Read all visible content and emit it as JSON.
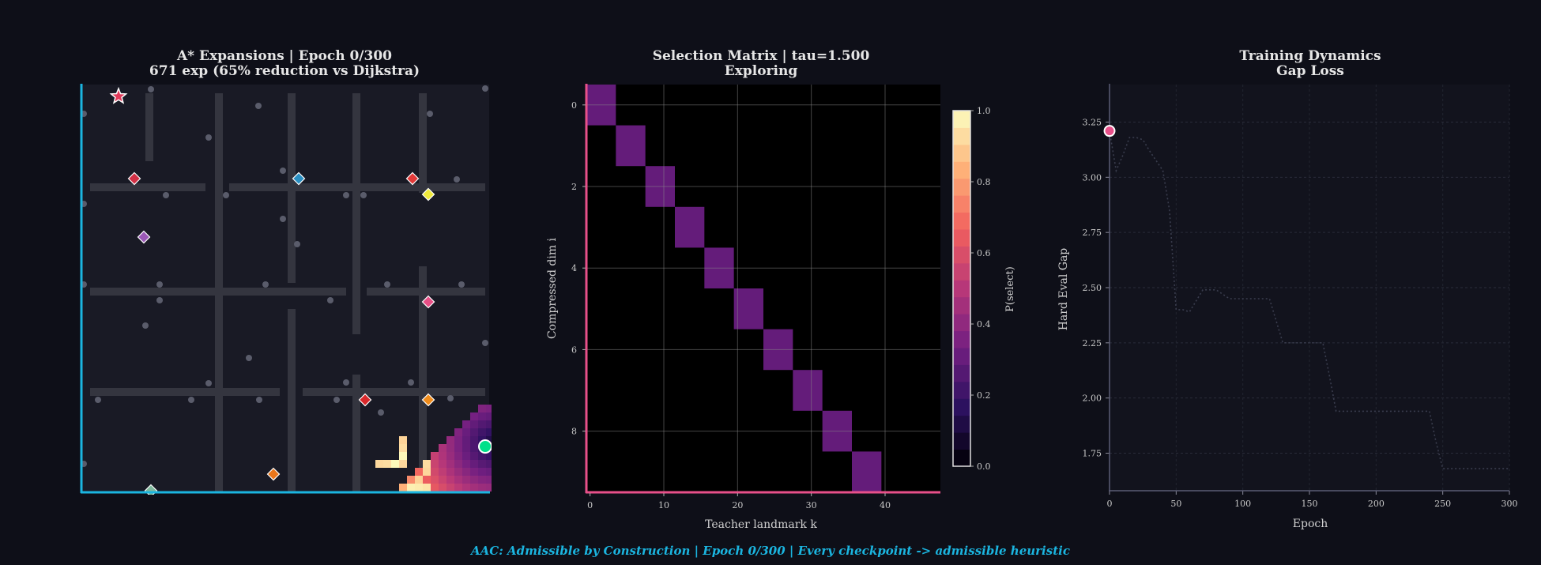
{
  "caption": "AAC: Admissible by Construction  |  Epoch 0/300  |  Every checkpoint -> admissible heuristic",
  "chart_data": [
    {
      "type": "heatmap",
      "title_line1": "A* Expansions  |  Epoch 0/300",
      "title_line2": "671 exp (65% reduction vs Dijkstra)",
      "colors": {
        "accent": "#1bb5e0",
        "walls": "#34353f",
        "background": "#191a25",
        "start": "#00e08a",
        "goal": "#e23a5a"
      },
      "landmark_colors": [
        "#d23045",
        "#2a8fc2",
        "#e33a39",
        "#f0ea3c",
        "#9b59b6",
        "#e84f86",
        "#d9282b",
        "#f08c1c",
        "#e9761b",
        "#7fb89d"
      ]
    },
    {
      "type": "heatmap",
      "title_line1": "Selection Matrix  |  tau=1.500",
      "title_line2": "Exploring",
      "xlabel": "Teacher landmark k",
      "ylabel": "Compressed dim i",
      "x_ticks": [
        "0",
        "10",
        "20",
        "30",
        "40"
      ],
      "y_ticks": [
        "0",
        "2",
        "4",
        "6",
        "8"
      ],
      "rows": 10,
      "cols": 48,
      "blocks": [
        [
          0,
          0,
          3
        ],
        [
          1,
          4,
          7
        ],
        [
          2,
          8,
          11
        ],
        [
          3,
          12,
          15
        ],
        [
          4,
          16,
          19
        ],
        [
          5,
          20,
          23
        ],
        [
          6,
          24,
          27
        ],
        [
          7,
          28,
          31
        ],
        [
          8,
          32,
          35
        ],
        [
          9,
          36,
          39
        ]
      ],
      "block_value": 0.25,
      "colorbar": {
        "label": "P(select)",
        "ticks": [
          "0.0",
          "0.2",
          "0.4",
          "0.6",
          "0.8",
          "1.0"
        ]
      },
      "colors": {
        "accent": "#e8508a"
      }
    },
    {
      "type": "line",
      "title_line1": "Training Dynamics",
      "title_line2": "Gap Loss",
      "xlabel": "Epoch",
      "ylabel": "Hard Eval Gap",
      "x_ticks": [
        "0",
        "50",
        "100",
        "150",
        "200",
        "250",
        "300"
      ],
      "y_ticks": [
        "1.75",
        "2.00",
        "2.25",
        "2.50",
        "2.75",
        "3.00",
        "3.25"
      ],
      "xlim": [
        0,
        300
      ],
      "ylim": [
        1.58,
        3.42
      ],
      "x": [
        0,
        5,
        10,
        15,
        20,
        25,
        30,
        40,
        45,
        50,
        55,
        60,
        70,
        80,
        90,
        100,
        110,
        120,
        130,
        140,
        150,
        160,
        165,
        170,
        180,
        200,
        220,
        240,
        245,
        250,
        260,
        280,
        300
      ],
      "y": [
        3.21,
        3.03,
        3.1,
        3.18,
        3.18,
        3.17,
        3.12,
        3.03,
        2.85,
        2.4,
        2.4,
        2.39,
        2.49,
        2.49,
        2.45,
        2.45,
        2.45,
        2.45,
        2.25,
        2.25,
        2.25,
        2.25,
        2.1,
        1.94,
        1.94,
        1.94,
        1.94,
        1.94,
        1.8,
        1.68,
        1.68,
        1.68,
        1.68
      ],
      "current": {
        "x": 0,
        "y": 3.21
      },
      "colors": {
        "line": "#3a3d4e",
        "marker": "#e8508a"
      }
    }
  ]
}
